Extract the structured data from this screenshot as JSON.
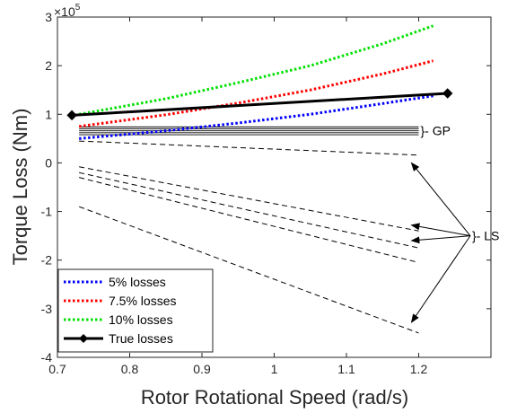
{
  "chart_data": {
    "type": "line",
    "xlabel": "Rotor Rotational Speed (rad/s)",
    "ylabel": "Torque Loss (Nm)",
    "y_multiplier_label": "×10",
    "y_multiplier_exp": "5",
    "xlim": [
      0.7,
      1.3
    ],
    "ylim": [
      -4,
      3
    ],
    "x_ticks": [
      0.7,
      0.8,
      0.9,
      1.0,
      1.1,
      1.2
    ],
    "x_tick_labels": [
      "0.7",
      "0.8",
      "0.9",
      "1",
      "1.1",
      "1.2"
    ],
    "y_ticks": [
      -4,
      -3,
      -2,
      -1,
      0,
      1,
      2,
      3
    ],
    "y_tick_labels": [
      "-4",
      "-3",
      "-2",
      "-1",
      "0",
      "1",
      "2",
      "3"
    ],
    "grid": false,
    "legend_position": "bottom-left",
    "series": [
      {
        "name": "5% losses",
        "color": "#0000ff",
        "style": "dotted",
        "x": [
          0.73,
          0.85,
          0.95,
          1.05,
          1.15,
          1.22
        ],
        "y": [
          0.5,
          0.66,
          0.82,
          1.0,
          1.22,
          1.38
        ]
      },
      {
        "name": "7.5% losses",
        "color": "#ff0000",
        "style": "dotted",
        "x": [
          0.73,
          0.85,
          0.95,
          1.05,
          1.15,
          1.22
        ],
        "y": [
          0.75,
          0.99,
          1.23,
          1.5,
          1.83,
          2.1
        ]
      },
      {
        "name": "10% losses",
        "color": "#00e000",
        "style": "dotted",
        "x": [
          0.73,
          0.85,
          0.95,
          1.05,
          1.15,
          1.22
        ],
        "y": [
          1.0,
          1.32,
          1.65,
          2.0,
          2.45,
          2.82
        ]
      },
      {
        "name": "True losses",
        "color": "#000000",
        "style": "solid",
        "marker": "diamond",
        "x": [
          0.72,
          1.24
        ],
        "y": [
          0.98,
          1.43
        ]
      }
    ],
    "gp_lines": {
      "color": "#000000",
      "lines": [
        {
          "x": [
            0.73,
            1.2
          ],
          "y": [
            0.74,
            0.74
          ]
        },
        {
          "x": [
            0.73,
            1.2
          ],
          "y": [
            0.7,
            0.7
          ]
        },
        {
          "x": [
            0.73,
            1.2
          ],
          "y": [
            0.66,
            0.66
          ]
        },
        {
          "x": [
            0.73,
            1.2
          ],
          "y": [
            0.62,
            0.62
          ]
        },
        {
          "x": [
            0.73,
            1.2
          ],
          "y": [
            0.58,
            0.58
          ]
        }
      ]
    },
    "ls_lines": {
      "color": "#000000",
      "style": "dashed",
      "lines": [
        {
          "x": [
            0.73,
            1.2
          ],
          "y": [
            0.45,
            0.16
          ]
        },
        {
          "x": [
            0.73,
            1.2
          ],
          "y": [
            -0.08,
            -1.4
          ]
        },
        {
          "x": [
            0.73,
            1.2
          ],
          "y": [
            -0.2,
            -1.75
          ]
        },
        {
          "x": [
            0.73,
            1.2
          ],
          "y": [
            -0.3,
            -2.05
          ]
        },
        {
          "x": [
            0.73,
            1.2
          ],
          "y": [
            -0.9,
            -3.5
          ]
        }
      ]
    },
    "annotations": {
      "gp_label": "}- GP",
      "ls_label": "}- LS"
    }
  }
}
